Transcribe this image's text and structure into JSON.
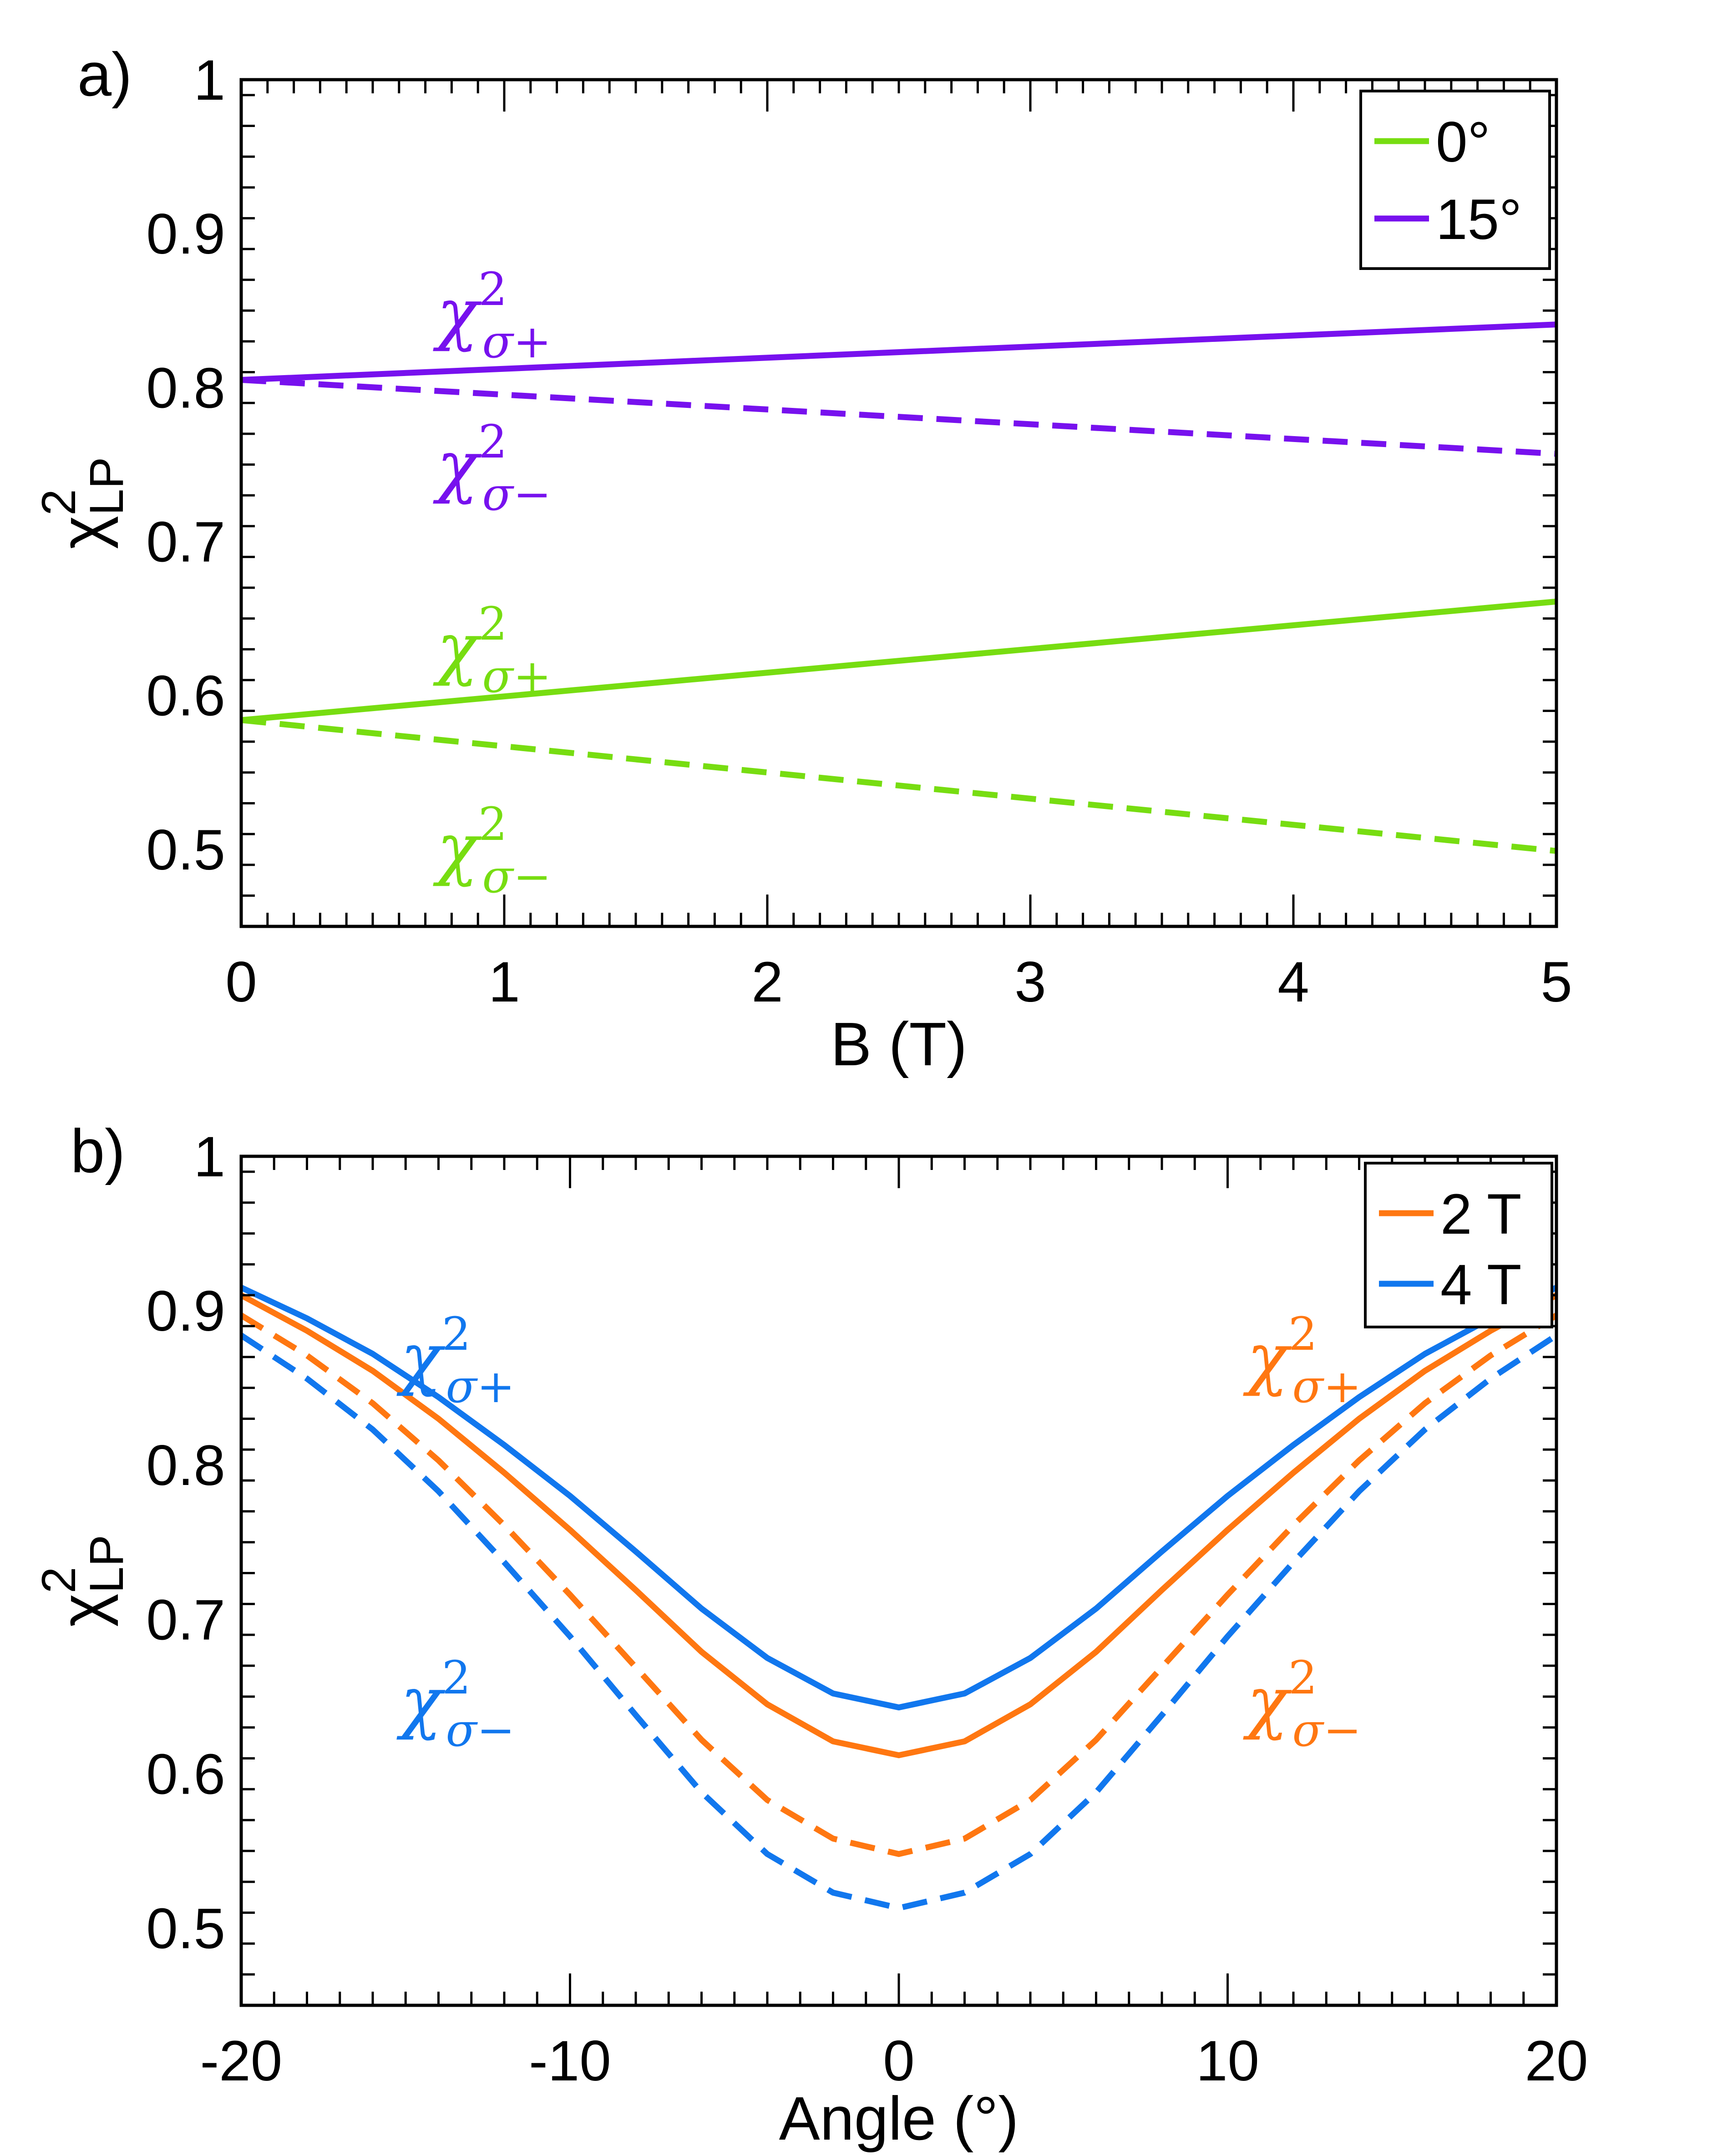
{
  "chart_data": [
    {
      "type": "line",
      "panel_label": "a)",
      "xlabel": "B (T)",
      "ylabel": {
        "main": "χ",
        "sup": "2",
        "sub": "LP"
      },
      "xlim": [
        0,
        5
      ],
      "ylim": [
        0.45,
        1.0
      ],
      "xticks": [
        "0",
        "1",
        "2",
        "3",
        "4",
        "5"
      ],
      "xtick_values": [
        0,
        1,
        2,
        3,
        4,
        5
      ],
      "yticks": [
        "0.5",
        "0.6",
        "0.7",
        "0.8",
        "0.9",
        "1"
      ],
      "ytick_values": [
        0.5,
        0.6,
        0.7,
        0.8,
        0.9,
        1.0
      ],
      "legend": [
        {
          "label": "0°",
          "color": "#77dd11"
        },
        {
          "label": "15°",
          "color": "#7711ee"
        }
      ],
      "series": [
        {
          "name": "15° σ+",
          "color": "#7711ee",
          "dash": false,
          "x": [
            0,
            5
          ],
          "y": [
            0.805,
            0.841
          ]
        },
        {
          "name": "15° σ-",
          "color": "#7711ee",
          "dash": true,
          "x": [
            0,
            5
          ],
          "y": [
            0.805,
            0.757
          ]
        },
        {
          "name": "0° σ+",
          "color": "#77dd11",
          "dash": false,
          "x": [
            0,
            5
          ],
          "y": [
            0.584,
            0.661
          ]
        },
        {
          "name": "0° σ-",
          "color": "#77dd11",
          "dash": true,
          "x": [
            0,
            5
          ],
          "y": [
            0.584,
            0.499
          ]
        }
      ],
      "annotations": [
        {
          "sub": "σ+",
          "color": "#7711ee"
        },
        {
          "sub": "σ−",
          "color": "#7711ee"
        },
        {
          "sub": "σ+",
          "color": "#77dd11"
        },
        {
          "sub": "σ−",
          "color": "#77dd11"
        }
      ]
    },
    {
      "type": "line",
      "panel_label": "b)",
      "xlabel": "Angle (°)",
      "ylabel": {
        "main": "χ",
        "sup": "2",
        "sub": "LP"
      },
      "xlim": [
        -20,
        20
      ],
      "ylim": [
        0.45,
        1.0
      ],
      "xticks": [
        "-20",
        "-10",
        "0",
        "10",
        "20"
      ],
      "xtick_values": [
        -20,
        -10,
        0,
        10,
        20
      ],
      "yticks": [
        "0.5",
        "0.6",
        "0.7",
        "0.8",
        "0.9",
        "1"
      ],
      "ytick_values": [
        0.5,
        0.6,
        0.7,
        0.8,
        0.9,
        1.0
      ],
      "legend": [
        {
          "label": "2 T",
          "color": "#ff7711"
        },
        {
          "label": "4 T",
          "color": "#1177ee"
        }
      ],
      "series": [
        {
          "name": "4 T σ+",
          "color": "#1177ee",
          "dash": false,
          "x": [
            -20,
            -18,
            -16,
            -14,
            -12,
            -10,
            -8,
            -6,
            -4,
            -2,
            0,
            2,
            4,
            6,
            8,
            10,
            12,
            14,
            16,
            18,
            20
          ],
          "y": [
            0.915,
            0.895,
            0.872,
            0.844,
            0.813,
            0.78,
            0.744,
            0.707,
            0.675,
            0.652,
            0.643,
            0.652,
            0.675,
            0.707,
            0.744,
            0.78,
            0.813,
            0.844,
            0.872,
            0.895,
            0.915
          ]
        },
        {
          "name": "2 T σ+",
          "color": "#ff7711",
          "dash": false,
          "x": [
            -20,
            -18,
            -16,
            -14,
            -12,
            -10,
            -8,
            -6,
            -4,
            -2,
            0,
            2,
            4,
            6,
            8,
            10,
            12,
            14,
            16,
            18,
            20
          ],
          "y": [
            0.91,
            0.887,
            0.861,
            0.83,
            0.795,
            0.758,
            0.719,
            0.679,
            0.645,
            0.621,
            0.612,
            0.621,
            0.645,
            0.679,
            0.719,
            0.758,
            0.795,
            0.83,
            0.861,
            0.887,
            0.91
          ]
        },
        {
          "name": "2 T σ-",
          "color": "#ff7711",
          "dash": true,
          "x": [
            -20,
            -18,
            -16,
            -14,
            -12,
            -10,
            -8,
            -6,
            -4,
            -2,
            0,
            2,
            4,
            6,
            8,
            10,
            12,
            14,
            16,
            18,
            20
          ],
          "y": [
            0.897,
            0.871,
            0.84,
            0.803,
            0.761,
            0.716,
            0.669,
            0.622,
            0.583,
            0.558,
            0.548,
            0.558,
            0.583,
            0.622,
            0.669,
            0.716,
            0.761,
            0.803,
            0.84,
            0.871,
            0.897
          ]
        },
        {
          "name": "4 T σ-",
          "color": "#1177ee",
          "dash": true,
          "x": [
            -20,
            -18,
            -16,
            -14,
            -12,
            -10,
            -8,
            -6,
            -4,
            -2,
            0,
            2,
            4,
            6,
            8,
            10,
            12,
            14,
            16,
            18,
            20
          ],
          "y": [
            0.884,
            0.856,
            0.823,
            0.783,
            0.737,
            0.689,
            0.638,
            0.588,
            0.548,
            0.523,
            0.513,
            0.523,
            0.548,
            0.588,
            0.638,
            0.689,
            0.737,
            0.783,
            0.823,
            0.856,
            0.884
          ]
        }
      ],
      "annotations": [
        {
          "sub": "σ+",
          "color": "#1177ee"
        },
        {
          "sub": "σ−",
          "color": "#1177ee"
        },
        {
          "sub": "σ+",
          "color": "#ff7711"
        },
        {
          "sub": "σ−",
          "color": "#ff7711"
        }
      ]
    }
  ]
}
